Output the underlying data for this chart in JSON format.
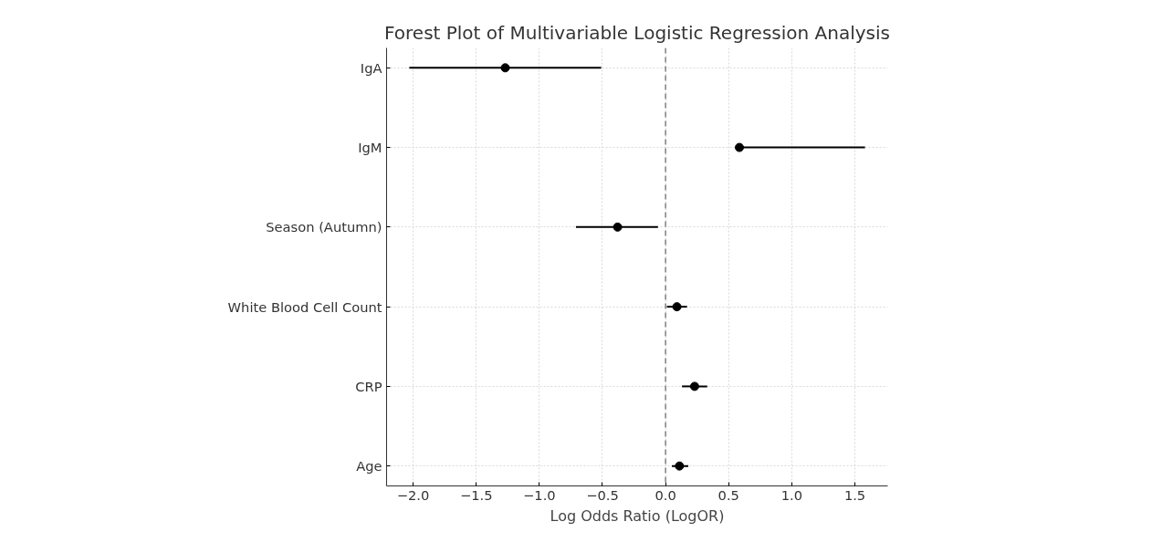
{
  "chart_data": {
    "type": "scatter",
    "orientation": "horizontal",
    "title": "Forest Plot of Multivariable Logistic Regression Analysis",
    "xlabel": "Log Odds Ratio (LogOR)",
    "categories": [
      "IgA",
      "IgM",
      "Season (Autumn)",
      "White Blood Cell Count",
      "CRP",
      "Age"
    ],
    "series": [
      {
        "color": "#000000",
        "values": [
          -1.27,
          0.585,
          -0.38,
          0.09,
          0.23,
          0.11
        ],
        "errors": [
          [
            -2.03,
            -0.51
          ],
          [
            0.585,
            1.58
          ],
          [
            -0.71,
            -0.06
          ],
          [
            0.01,
            0.17
          ],
          [
            0.13,
            0.33
          ],
          [
            0.05,
            0.18
          ]
        ]
      }
    ],
    "xlim": [
      -2.21,
      1.76
    ],
    "xticks": [
      {
        "value": -2.0,
        "label": "−2.0"
      },
      {
        "value": -1.5,
        "label": "−1.5"
      },
      {
        "value": -1.0,
        "label": "−1.0"
      },
      {
        "value": -0.5,
        "label": "−0.5"
      },
      {
        "value": 0.0,
        "label": "0.0"
      },
      {
        "value": 0.5,
        "label": "0.5"
      },
      {
        "value": 1.0,
        "label": "1.0"
      },
      {
        "value": 1.5,
        "label": "1.5"
      }
    ],
    "ref_lines": [
      {
        "axis": "x",
        "value": 0,
        "color": "#808080",
        "line_style": "dashed"
      }
    ],
    "grid": true,
    "marker": "circle"
  }
}
